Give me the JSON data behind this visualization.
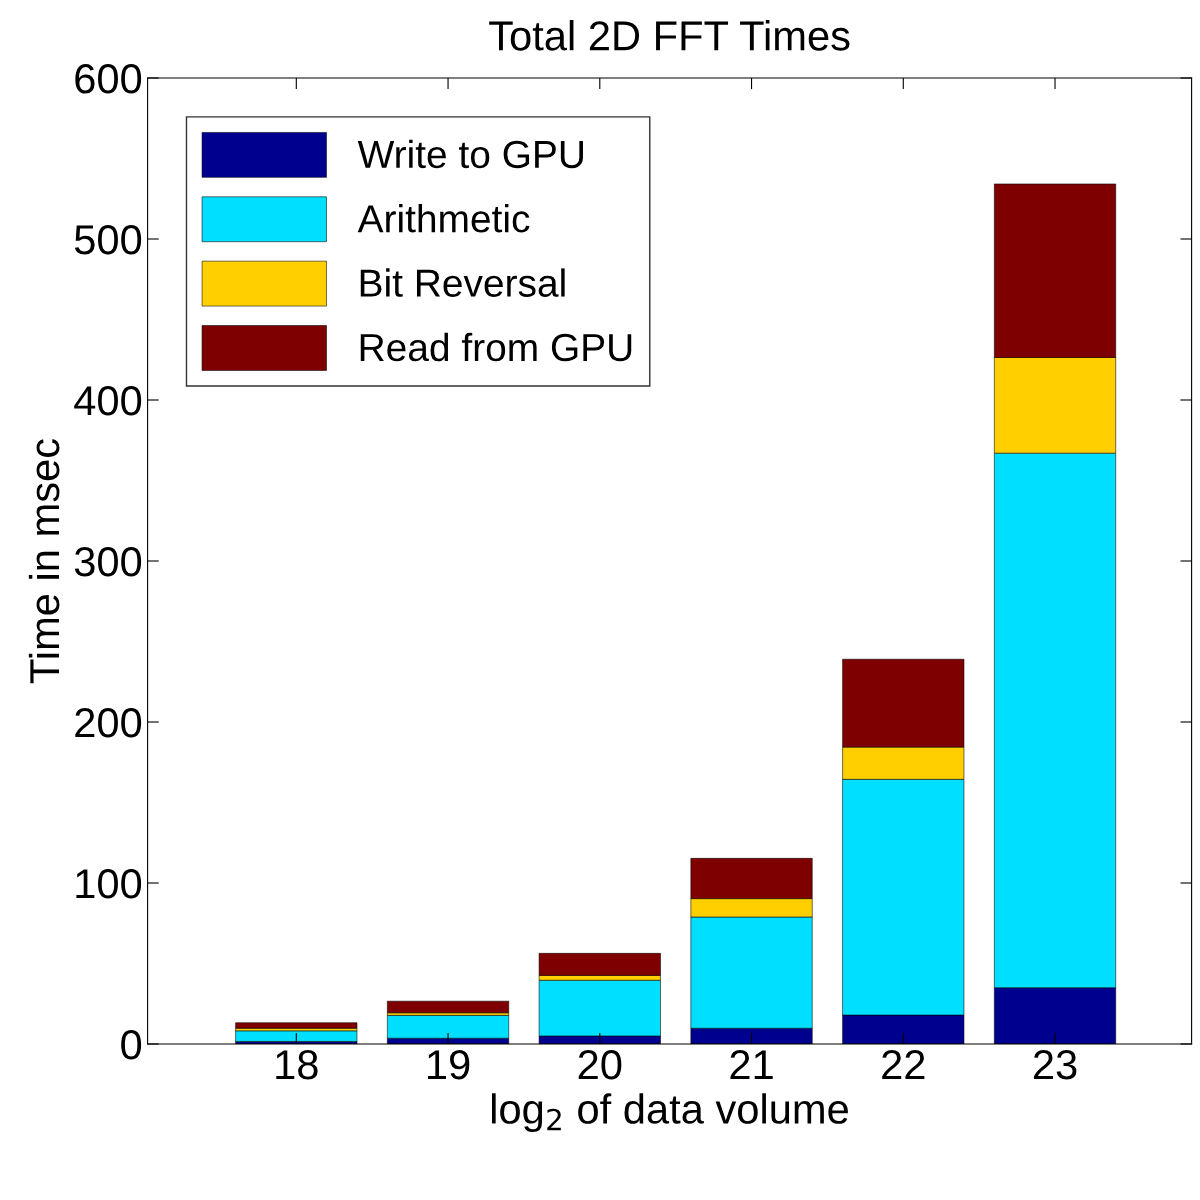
{
  "chart_data": {
    "type": "bar",
    "stacked": true,
    "title": "Total 2D FFT Times",
    "xlabel": "log$_{2}$ of data volume",
    "ylabel": "Time in msec",
    "categories": [
      "18",
      "19",
      "20",
      "21",
      "22",
      "23"
    ],
    "series": [
      {
        "name": "Write to GPU",
        "color": "#00008f",
        "values": [
          1.6,
          3.6,
          5.0,
          9.8,
          18,
          35
        ]
      },
      {
        "name": "Arithmetic",
        "color": "#00dfff",
        "values": [
          6.6,
          14.2,
          34.6,
          69.1,
          146.4,
          332
        ]
      },
      {
        "name": "Bit Reversal",
        "color": "#ffcf00",
        "values": [
          1.6,
          1.6,
          3.0,
          11.4,
          20,
          59.4
        ]
      },
      {
        "name": "Read from GPU",
        "color": "#7f0000",
        "values": [
          3.4,
          7.2,
          13.7,
          25.0,
          54.6,
          107.8
        ]
      }
    ],
    "ylim": [
      0,
      600
    ],
    "yticks": [
      0,
      100,
      200,
      300,
      400,
      500,
      600
    ],
    "grid": false,
    "legend": "top left"
  }
}
